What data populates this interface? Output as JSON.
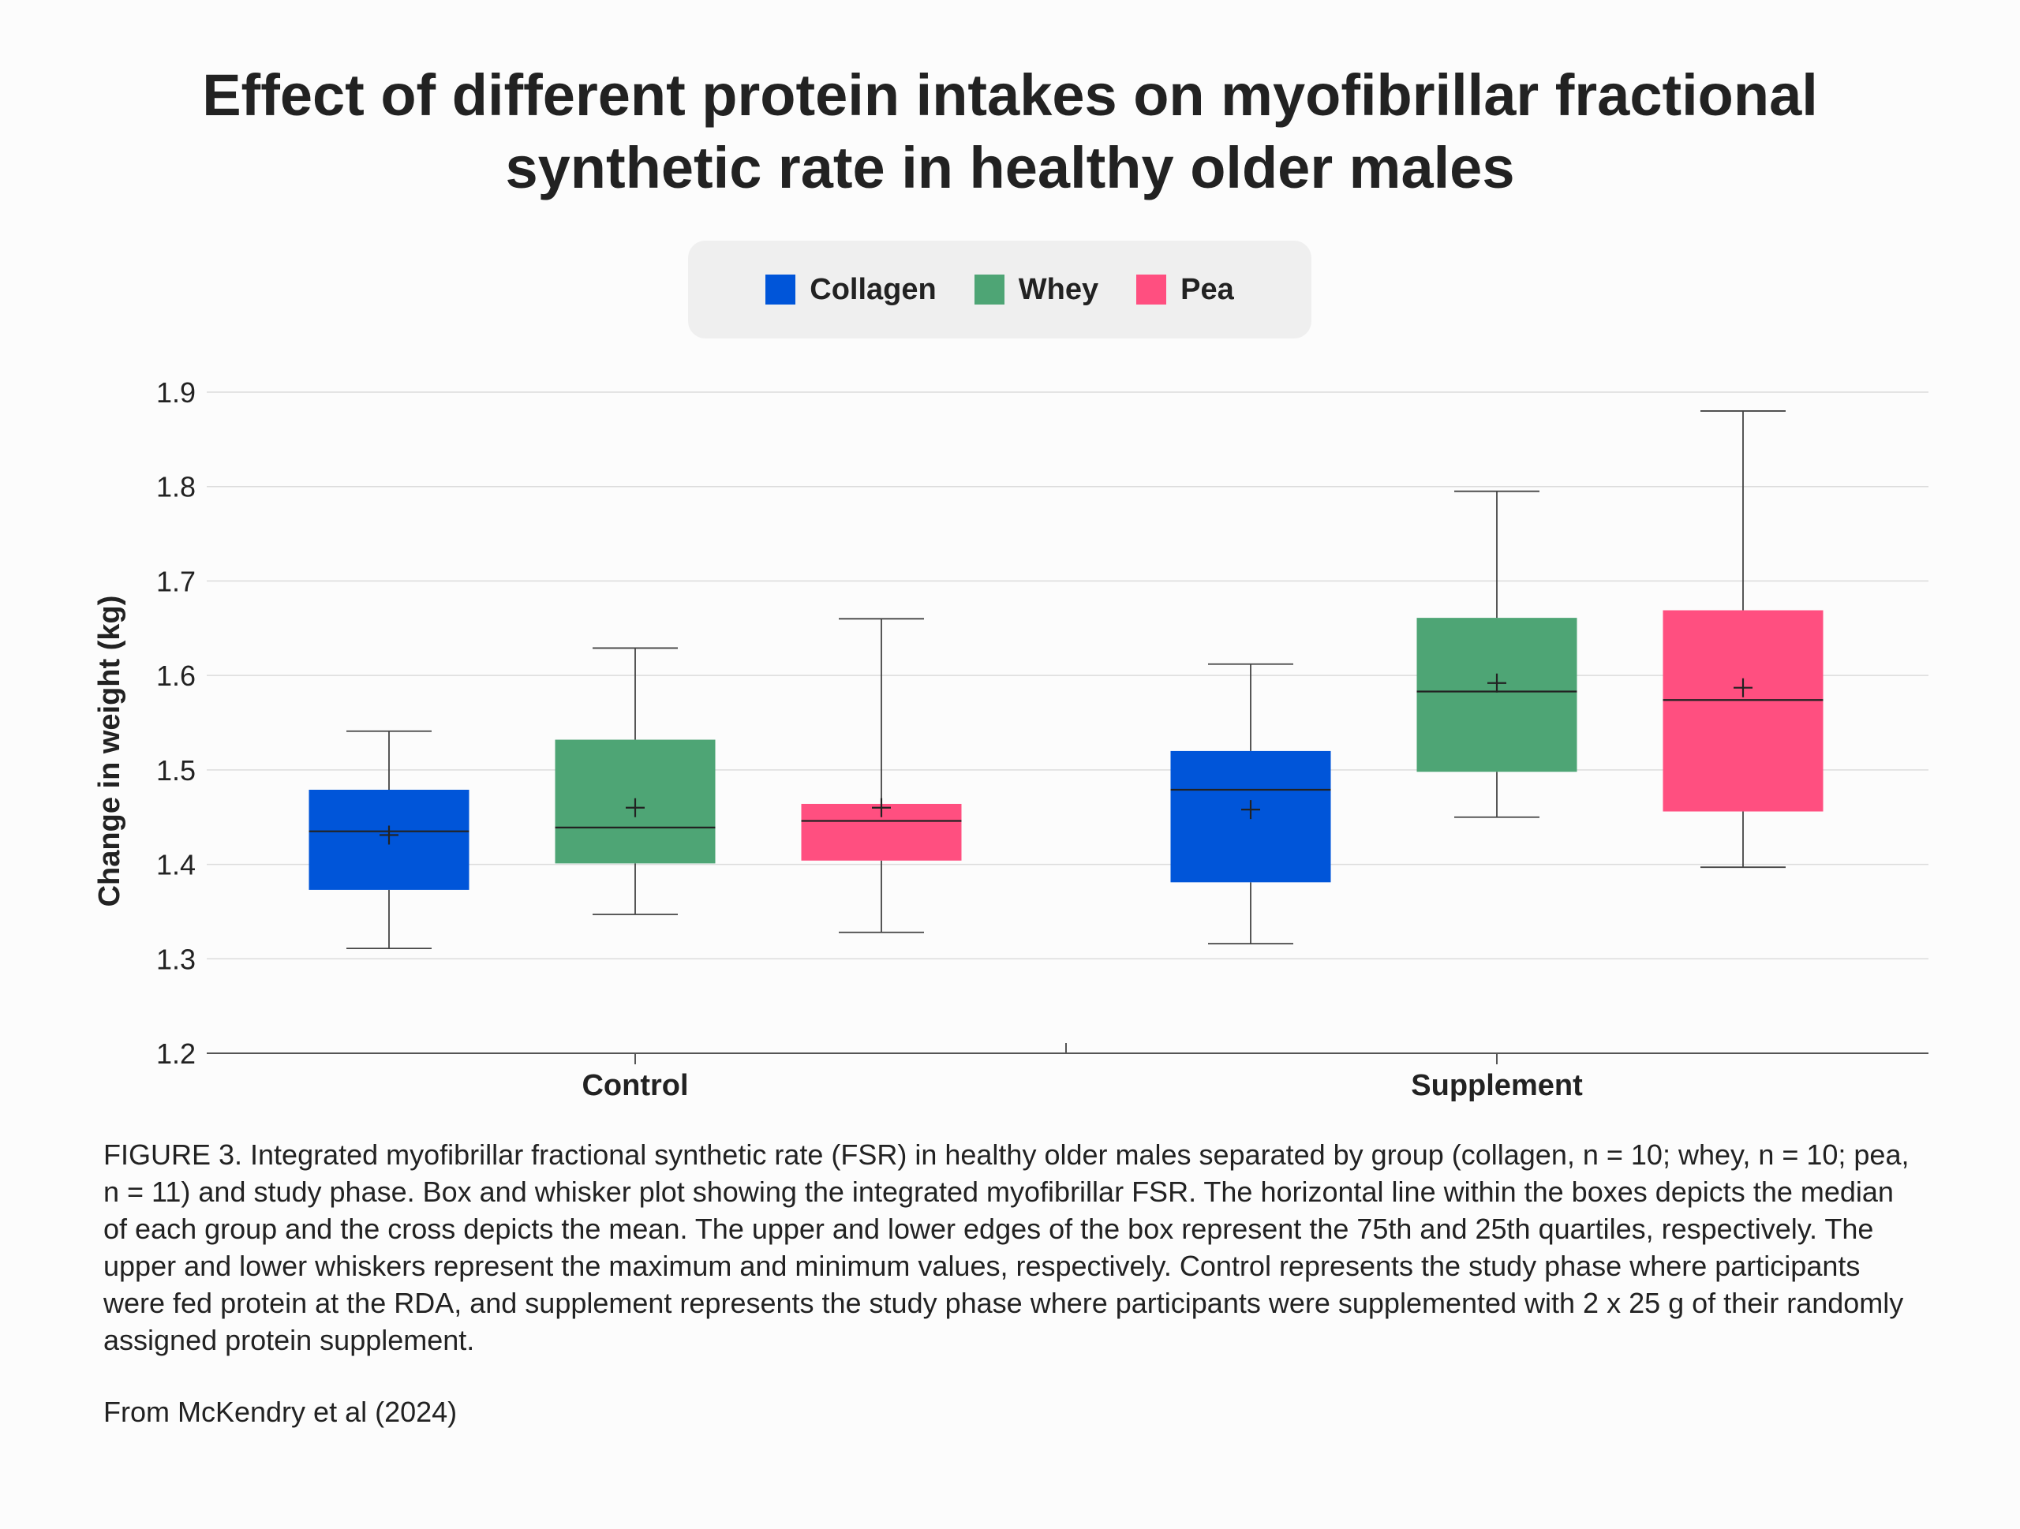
{
  "chart_data": {
    "type": "box",
    "title_line1": "Effect of different protein intakes on myofibrillar fractional",
    "title_line2": "synthetic rate in healthy older males",
    "xlabel": "",
    "ylabel": "Change in weight (kg)",
    "ylim": [
      1.2,
      1.9
    ],
    "yticks": [
      "1.9",
      "1.8",
      "1.7",
      "1.6",
      "1.5",
      "1.4",
      "1.3",
      "1.2"
    ],
    "categories": [
      "Control",
      "Supplement"
    ],
    "grid": true,
    "legend_position": "top-center",
    "series": [
      {
        "name": "Collagen",
        "color": "#0055d9",
        "boxes": [
          {
            "min": 1.311,
            "q1": 1.373,
            "median": 1.435,
            "q3": 1.479,
            "max": 1.541,
            "mean": 1.431
          },
          {
            "min": 1.316,
            "q1": 1.381,
            "median": 1.479,
            "q3": 1.52,
            "max": 1.612,
            "mean": 1.458
          }
        ]
      },
      {
        "name": "Whey",
        "color": "#4ea575",
        "boxes": [
          {
            "min": 1.347,
            "q1": 1.401,
            "median": 1.439,
            "q3": 1.532,
            "max": 1.629,
            "mean": 1.46
          },
          {
            "min": 1.45,
            "q1": 1.498,
            "median": 1.583,
            "q3": 1.661,
            "max": 1.795,
            "mean": 1.592
          }
        ]
      },
      {
        "name": "Pea",
        "color": "#ff4f80",
        "boxes": [
          {
            "min": 1.328,
            "q1": 1.404,
            "median": 1.446,
            "q3": 1.464,
            "max": 1.66,
            "mean": 1.46
          },
          {
            "min": 1.397,
            "q1": 1.456,
            "median": 1.574,
            "q3": 1.669,
            "max": 1.88,
            "mean": 1.587
          }
        ]
      }
    ]
  },
  "caption": "FIGURE 3. Integrated myofibrillar fractional synthetic rate (FSR) in healthy older males separated by group (collagen, n = 10; whey, n = 10; pea, n = 11) and study phase. Box and whisker plot showing the integrated myofibrillar FSR. The horizontal line within the boxes depicts the median of each group and the cross depicts the mean. The upper and lower edges of the box represent the 75th and 25th quartiles, respectively. The upper and lower whiskers represent the maximum and minimum values, respectively. Control represents the study phase where participants were fed protein at the RDA, and supplement represents the study phase where participants were supplemented with 2 x 25 g of their randomly assigned protein supplement.",
  "source": "From McKendry et al (2024)"
}
